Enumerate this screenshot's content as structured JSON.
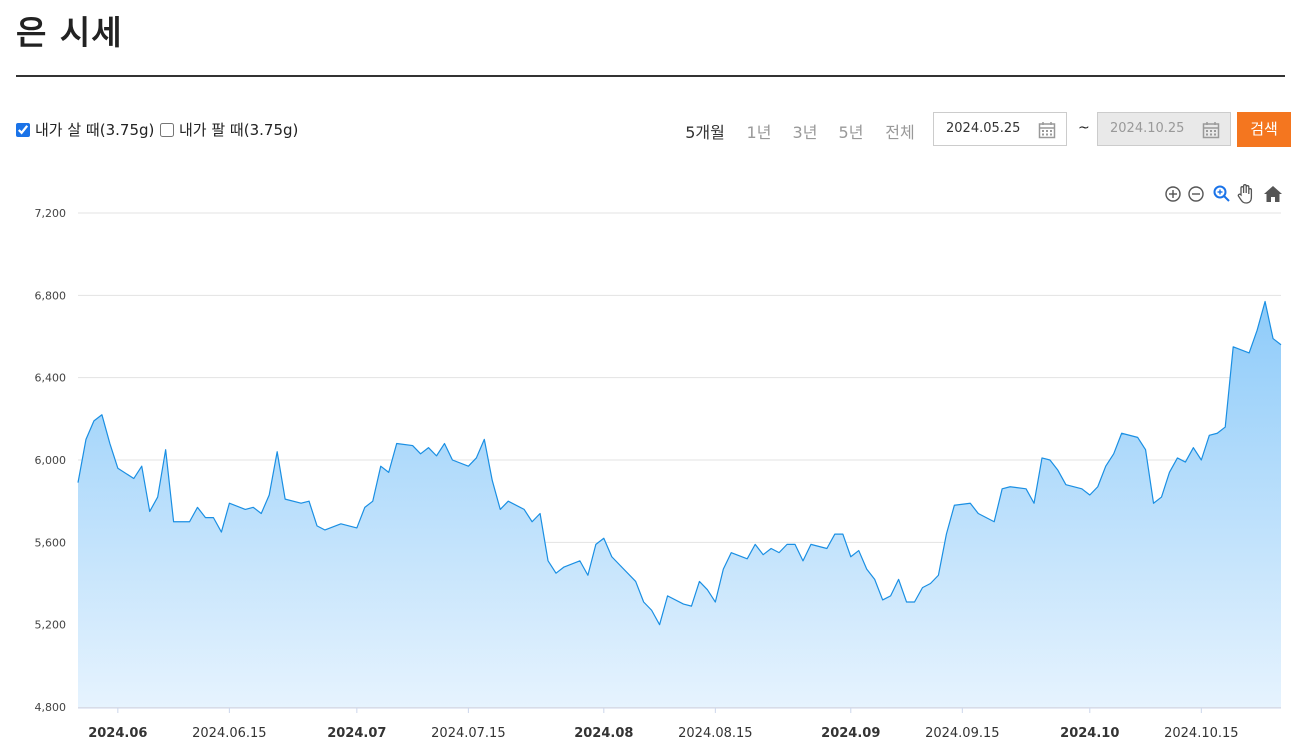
{
  "header": {
    "title": "은 시세"
  },
  "controls": {
    "options": [
      {
        "label": "내가 살 때(3.75g)",
        "checked": true
      },
      {
        "label": "내가 팔 때(3.75g)",
        "checked": false
      }
    ],
    "periods": [
      {
        "label": "5개월",
        "active": true
      },
      {
        "label": "1년",
        "active": false
      },
      {
        "label": "3년",
        "active": false
      },
      {
        "label": "5년",
        "active": false
      },
      {
        "label": "전체",
        "active": false
      }
    ],
    "start_date": "2024.05.25",
    "separator": "~",
    "end_date": "2024.10.25",
    "search": "검색"
  },
  "chart_data": {
    "type": "area",
    "color": "#1a8fe3",
    "grid": true,
    "x": [
      "2024.05.27",
      "2024.05.28",
      "2024.05.29",
      "2024.05.30",
      "2024.05.31",
      "2024.06.01",
      "2024.06.03",
      "2024.06.04",
      "2024.06.05",
      "2024.06.06",
      "2024.06.07",
      "2024.06.08",
      "2024.06.10",
      "2024.06.11",
      "2024.06.12",
      "2024.06.13",
      "2024.06.14",
      "2024.06.15",
      "2024.06.17",
      "2024.06.18",
      "2024.06.19",
      "2024.06.20",
      "2024.06.21",
      "2024.06.22",
      "2024.06.24",
      "2024.06.25",
      "2024.06.26",
      "2024.06.27",
      "2024.06.29",
      "2024.07.01",
      "2024.07.02",
      "2024.07.03",
      "2024.07.04",
      "2024.07.05",
      "2024.07.06",
      "2024.07.08",
      "2024.07.09",
      "2024.07.10",
      "2024.07.11",
      "2024.07.12",
      "2024.07.13",
      "2024.07.15",
      "2024.07.16",
      "2024.07.17",
      "2024.07.18",
      "2024.07.19",
      "2024.07.20",
      "2024.07.22",
      "2024.07.23",
      "2024.07.24",
      "2024.07.25",
      "2024.07.26",
      "2024.07.27",
      "2024.07.29",
      "2024.07.30",
      "2024.07.31",
      "2024.08.01",
      "2024.08.02",
      "2024.08.03",
      "2024.08.05",
      "2024.08.06",
      "2024.08.07",
      "2024.08.08",
      "2024.08.09",
      "2024.08.11",
      "2024.08.12",
      "2024.08.13",
      "2024.08.14",
      "2024.08.15",
      "2024.08.16",
      "2024.08.17",
      "2024.08.19",
      "2024.08.20",
      "2024.08.21",
      "2024.08.22",
      "2024.08.23",
      "2024.08.24",
      "2024.08.25",
      "2024.08.26",
      "2024.08.27",
      "2024.08.29",
      "2024.08.30",
      "2024.08.31",
      "2024.09.01",
      "2024.09.02",
      "2024.09.03",
      "2024.09.04",
      "2024.09.05",
      "2024.09.06",
      "2024.09.07",
      "2024.09.08",
      "2024.09.09",
      "2024.09.10",
      "2024.09.11",
      "2024.09.12",
      "2024.09.13",
      "2024.09.14",
      "2024.09.16",
      "2024.09.17",
      "2024.09.18",
      "2024.09.19",
      "2024.09.20",
      "2024.09.21",
      "2024.09.23",
      "2024.09.24",
      "2024.09.25",
      "2024.09.26",
      "2024.09.27",
      "2024.09.28",
      "2024.09.30",
      "2024.10.01",
      "2024.10.02",
      "2024.10.03",
      "2024.10.04",
      "2024.10.05",
      "2024.10.07",
      "2024.10.08",
      "2024.10.09",
      "2024.10.10",
      "2024.10.11",
      "2024.10.12",
      "2024.10.13",
      "2024.10.14",
      "2024.10.15",
      "2024.10.16",
      "2024.10.17",
      "2024.10.18",
      "2024.10.19",
      "2024.10.21",
      "2024.10.22",
      "2024.10.23",
      "2024.10.24",
      "2024.10.25"
    ],
    "values": [
      5890,
      6100,
      6190,
      6220,
      6080,
      5960,
      5910,
      5970,
      5750,
      5820,
      6050,
      5700,
      5700,
      5770,
      5720,
      5720,
      5650,
      5790,
      5760,
      5770,
      5740,
      5830,
      6040,
      5810,
      5790,
      5800,
      5680,
      5660,
      5690,
      5670,
      5770,
      5800,
      5970,
      5940,
      6080,
      6070,
      6030,
      6060,
      6020,
      6080,
      6000,
      5970,
      6010,
      6100,
      5900,
      5760,
      5800,
      5760,
      5700,
      5740,
      5510,
      5450,
      5480,
      5510,
      5440,
      5590,
      5620,
      5530,
      5490,
      5410,
      5310,
      5270,
      5200,
      5340,
      5300,
      5290,
      5410,
      5370,
      5310,
      5470,
      5550,
      5520,
      5590,
      5540,
      5570,
      5550,
      5590,
      5590,
      5510,
      5590,
      5570,
      5640,
      5640,
      5530,
      5560,
      5470,
      5420,
      5320,
      5340,
      5420,
      5310,
      5310,
      5380,
      5400,
      5440,
      5640,
      5780,
      5790,
      5740,
      5720,
      5700,
      5860,
      5870,
      5860,
      5790,
      6010,
      6000,
      5950,
      5880,
      5860,
      5830,
      5870,
      5970,
      6030,
      6130,
      6110,
      6050,
      5790,
      5820,
      5940,
      6010,
      5990,
      6060,
      6000,
      6120,
      6130,
      6160,
      6550,
      6520,
      6630,
      6770,
      6590,
      6560
    ],
    "xlim": [
      "2024.05.27",
      "2024.10.25"
    ],
    "xticks": [
      {
        "value": "2024.06.01",
        "label": "2024.06"
      },
      "2024.06.15",
      {
        "value": "2024.07.01",
        "label": "2024.07"
      },
      "2024.07.15",
      {
        "value": "2024.08.01",
        "label": "2024.08"
      },
      "2024.08.15",
      {
        "value": "2024.09.01",
        "label": "2024.09"
      },
      "2024.09.15",
      {
        "value": "2024.10.01",
        "label": "2024.10"
      },
      "2024.10.15"
    ],
    "ylim": [
      4800,
      7200
    ],
    "yticks": [
      {
        "value": 4800,
        "label": "4,800"
      },
      {
        "value": 5200,
        "label": "5,200"
      },
      {
        "value": 5600,
        "label": "5,600"
      },
      {
        "value": 6000,
        "label": "6,000"
      },
      {
        "value": 6400,
        "label": "6,400"
      },
      {
        "value": 6800,
        "label": "6,800"
      },
      {
        "value": 7200,
        "label": "7,200"
      }
    ]
  }
}
